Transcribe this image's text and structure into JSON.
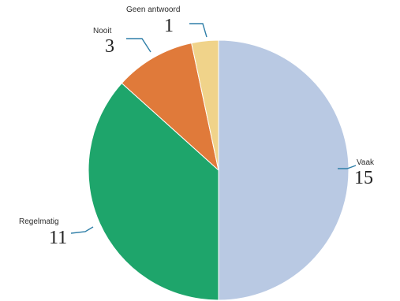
{
  "chart_data": {
    "type": "pie",
    "start": "top",
    "direction": "clockwise",
    "slices": [
      {
        "label": "Vaak",
        "value": 15,
        "color": "#b9c9e3"
      },
      {
        "label": "Regelmatig",
        "value": 11,
        "color": "#1ea56b"
      },
      {
        "label": "Nooit",
        "value": 3,
        "color": "#e07a3a"
      },
      {
        "label": "Geen antwoord",
        "value": 1,
        "color": "#f0d38a"
      }
    ],
    "leader_color": "#2f7fa8"
  }
}
